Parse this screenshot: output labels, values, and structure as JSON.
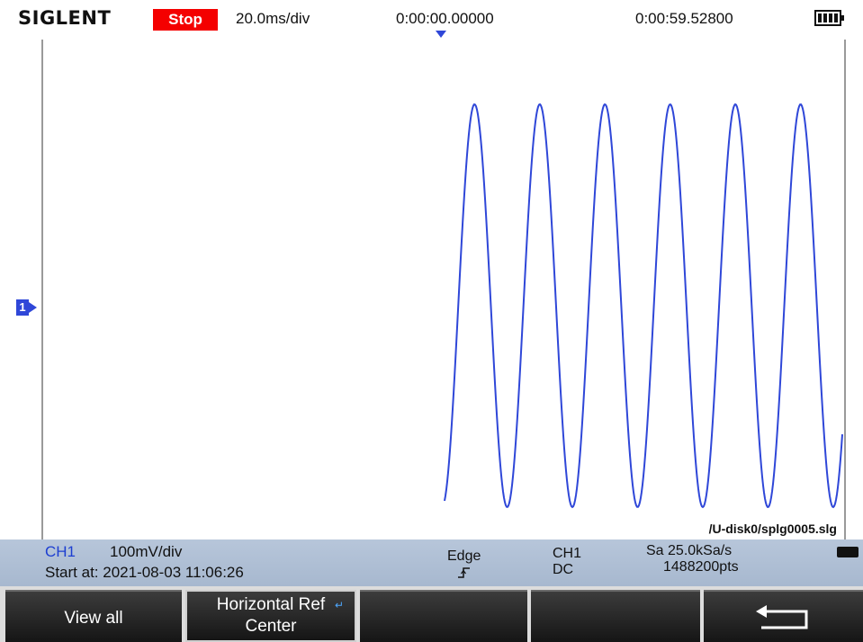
{
  "header": {
    "brand": "SIGLENT",
    "run_status": "Stop",
    "timebase": "20.0ms/div",
    "trigger_delay": "0:00:00.00000",
    "record_time": "0:00:59.52800"
  },
  "colors": {
    "run_status_bg": "#f40000",
    "trace": "#2f47d8",
    "channel_label": "#1d3fd1",
    "infobar": "#b2c2d7"
  },
  "icons": [
    "battery-icon",
    "trigger-position-marker",
    "channel-1-marker",
    "rising-edge-icon",
    "usb-icon",
    "back-arrow-icon",
    "adjust-knob-icon"
  ],
  "channel_marker": "1",
  "waveform": {
    "file_path": "/U-disk0/splg0005.slg",
    "channel": "CH1",
    "shape": "sine",
    "cycles_visible": 6,
    "starts_at_fraction_of_screen": 0.5
  },
  "info": {
    "channel": "CH1",
    "vertical_scale": "100mV/div",
    "start_at": "Start at: 2021-08-03 11:06:26",
    "trigger_type": "Edge",
    "trigger_source": "CH1",
    "trigger_coupling": "DC",
    "sample_rate": "Sa 25.0kSa/s",
    "memory_depth": "1488200pts"
  },
  "softkeys": {
    "view_all": "View all",
    "horizontal_ref_line1": "Horizontal Ref",
    "horizontal_ref_line2": "Center",
    "back_icon": "back-arrow-icon"
  }
}
